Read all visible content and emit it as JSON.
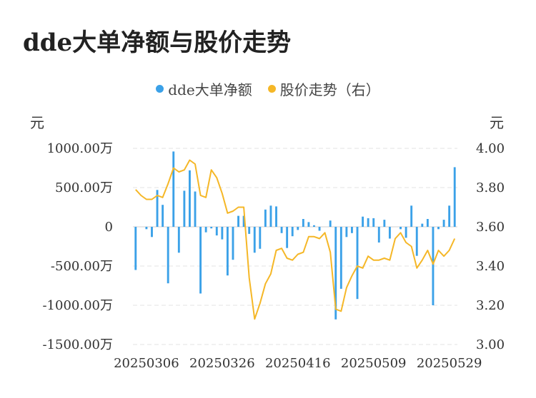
{
  "title": "dde大单净额与股价走势",
  "legend": {
    "items": [
      {
        "label": "dde大单净额",
        "color": "#3ba1e8"
      },
      {
        "label": "股价走势（右）",
        "color": "#f5b727"
      }
    ]
  },
  "units": {
    "left": "元",
    "right": "元"
  },
  "chart_data": {
    "type": "bar",
    "title": "dde大单净额与股价走势",
    "left_axis": {
      "unit": "元",
      "ylim": [
        -1500,
        1000
      ],
      "ticks": [
        1000,
        500,
        0,
        -500,
        -1000,
        -1500
      ],
      "tick_labels": [
        "1000.00万",
        "500.00万",
        "0",
        "-500.00万",
        "-1000.00万",
        "-1500.00万"
      ]
    },
    "right_axis": {
      "unit": "元",
      "ylim": [
        3.0,
        4.0
      ],
      "ticks": [
        4.0,
        3.8,
        3.6,
        3.4,
        3.2,
        3.0
      ],
      "tick_labels": [
        "4.00",
        "3.80",
        "3.60",
        "3.40",
        "3.20",
        "3.00"
      ]
    },
    "x_tick_labels": [
      "20250306",
      "20250326",
      "20250416",
      "20250509",
      "20250529"
    ],
    "x_tick_positions": [
      2,
      16,
      30,
      44,
      58
    ],
    "grid": true,
    "legend_position": "top-center",
    "series": [
      {
        "name": "dde大单净额",
        "type": "bar",
        "axis": "left",
        "color": "#3ba1e8",
        "values": [
          -550,
          0,
          -30,
          -130,
          470,
          280,
          -720,
          960,
          -330,
          460,
          720,
          450,
          -850,
          -70,
          -20,
          -110,
          -160,
          -620,
          -420,
          140,
          140,
          -90,
          -330,
          -280,
          220,
          270,
          260,
          -80,
          -270,
          -120,
          -40,
          100,
          60,
          20,
          -50,
          0,
          80,
          -1180,
          -790,
          -130,
          -80,
          -920,
          130,
          110,
          110,
          -200,
          90,
          -150,
          0,
          -30,
          -140,
          270,
          -370,
          40,
          100,
          -1000,
          -30,
          90,
          270,
          760
        ]
      },
      {
        "name": "股价走势（右）",
        "type": "line",
        "axis": "right",
        "color": "#f5b727",
        "values": [
          3.79,
          3.76,
          3.74,
          3.74,
          3.76,
          3.75,
          3.82,
          3.9,
          3.88,
          3.89,
          3.94,
          3.92,
          3.76,
          3.75,
          3.89,
          3.85,
          3.77,
          3.67,
          3.68,
          3.7,
          3.7,
          3.34,
          3.13,
          3.21,
          3.31,
          3.36,
          3.48,
          3.49,
          3.44,
          3.43,
          3.46,
          3.47,
          3.55,
          3.55,
          3.54,
          3.57,
          3.47,
          3.18,
          3.17,
          3.29,
          3.35,
          3.4,
          3.39,
          3.45,
          3.43,
          3.43,
          3.44,
          3.43,
          3.54,
          3.57,
          3.52,
          3.5,
          3.39,
          3.43,
          3.48,
          3.41,
          3.48,
          3.45,
          3.48,
          3.54
        ]
      }
    ]
  }
}
